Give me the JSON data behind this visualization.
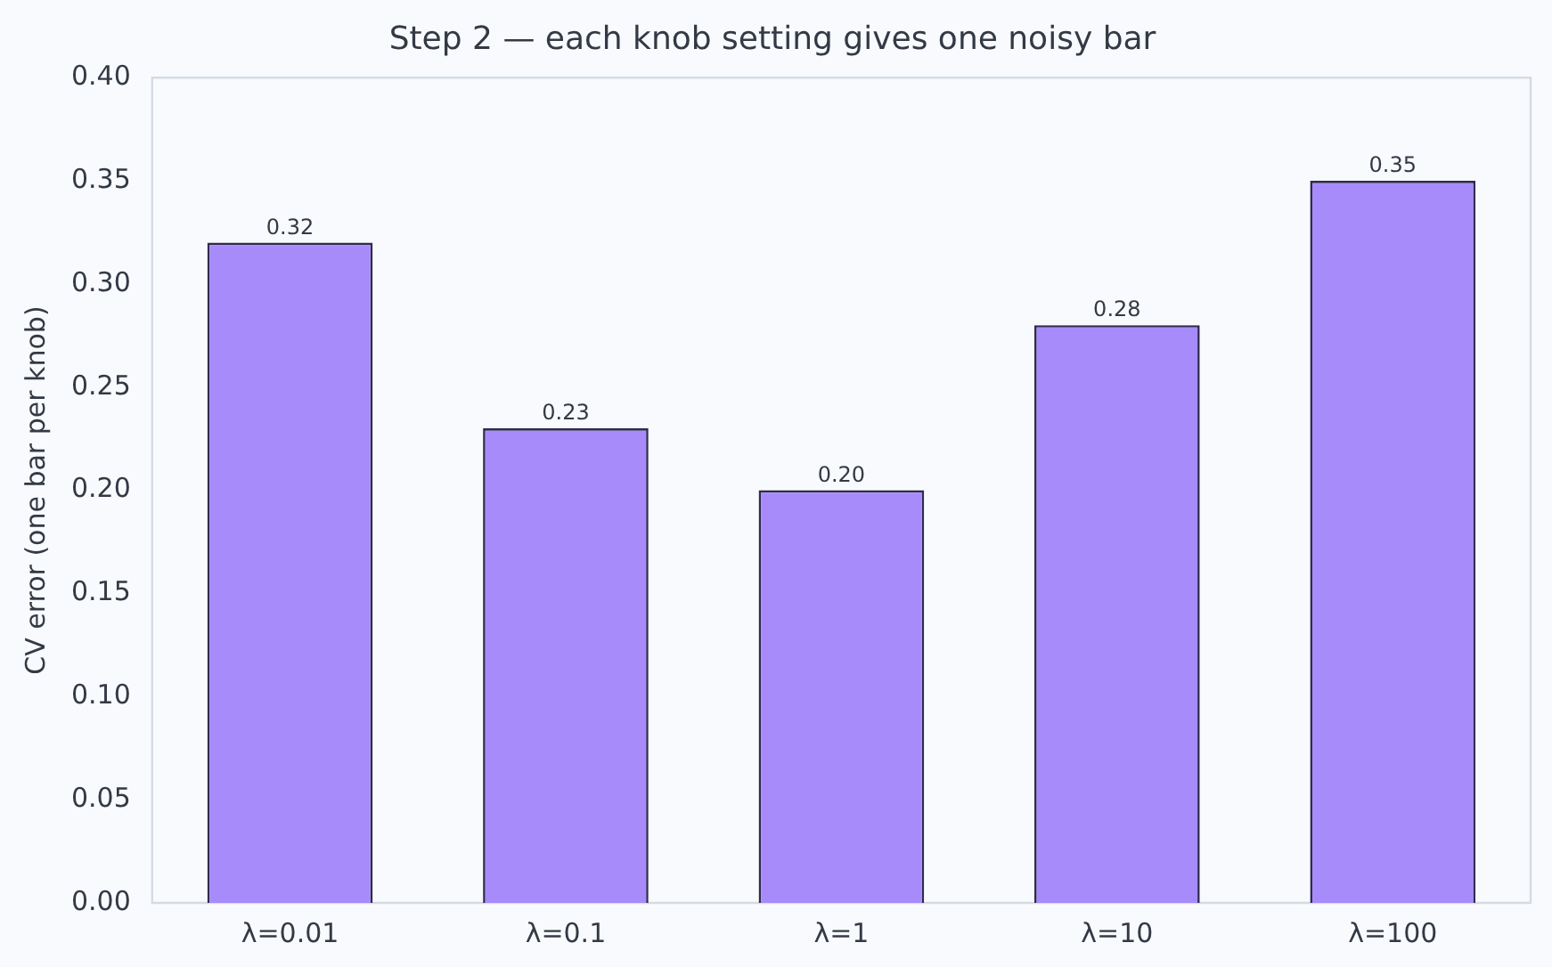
{
  "chart_data": {
    "type": "bar",
    "title": "Step 2 — each knob setting gives one noisy bar",
    "ylabel": "CV error (one bar per knob)",
    "categories": [
      "λ=0.01",
      "λ=0.1",
      "λ=1",
      "λ=10",
      "λ=100"
    ],
    "values": [
      0.32,
      0.23,
      0.2,
      0.28,
      0.35
    ],
    "value_labels": [
      "0.32",
      "0.23",
      "0.20",
      "0.28",
      "0.35"
    ],
    "color": "#a78bfa",
    "ylim": [
      0,
      0.4
    ],
    "yticks": [
      {
        "value": 0,
        "label": "0.00"
      },
      {
        "value": 0.05,
        "label": "0.05"
      },
      {
        "value": 0.1,
        "label": "0.10"
      },
      {
        "value": 0.15,
        "label": "0.15"
      },
      {
        "value": 0.2,
        "label": "0.20"
      },
      {
        "value": 0.25,
        "label": "0.25"
      },
      {
        "value": 0.3,
        "label": "0.30"
      },
      {
        "value": 0.35,
        "label": "0.35"
      },
      {
        "value": 0.4,
        "label": "0.40"
      }
    ],
    "grid": false,
    "legend": false
  }
}
